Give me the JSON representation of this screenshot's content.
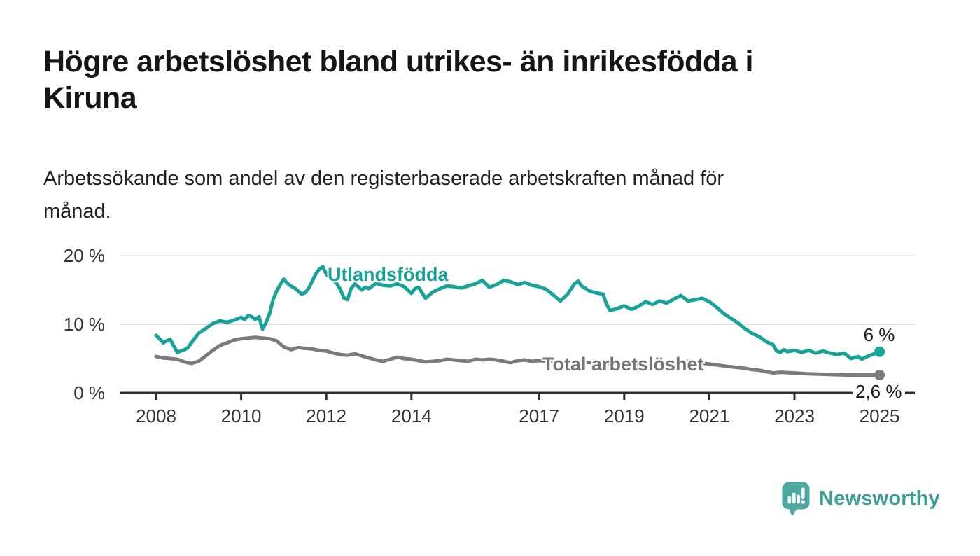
{
  "header": {
    "title_lines": [
      "Högre arbetslöshet bland utrikes- än inrikesfödda i",
      "Kiruna"
    ],
    "subtitle_lines": [
      "Arbetssökande som andel av den registerbaserade arbetskraften månad för",
      "månad."
    ]
  },
  "annotations": {
    "series_label_utlandsfodda": "Utlandsfödda",
    "series_label_total": "Total arbetslöshet",
    "end_label_utlandsfodda": "6 %",
    "end_label_total": "2,6 %"
  },
  "branding": {
    "logo_text": "Newsworthy",
    "logo_bubble_color": "#4ba79f",
    "logo_text_color": "#3d9e98"
  },
  "colors": {
    "accent_teal": "#18a399",
    "line_gray": "#7b7b7b",
    "series_label_gray": "#757575",
    "grid": "#dcdcdc",
    "axis": "#2e2e2e",
    "tick_text": "#333333",
    "title_text": "#161613",
    "body_text": "#222222",
    "end_label_text": "#1f1f1f",
    "background": "#ffffff"
  },
  "chart_data": {
    "type": "line",
    "title": "Högre arbetslöshet bland utrikes- än inrikesfödda i Kiruna",
    "subtitle": "Arbetssökande som andel av den registerbaserade arbetskraften månad för månad.",
    "unit": "%",
    "xlabel": "",
    "ylabel": "",
    "xlim": [
      2007.15,
      2025.85
    ],
    "ylim": [
      0,
      21
    ],
    "grid": "horizontal-only",
    "legend_position": "inline-labels-on-lines",
    "x_ticks": [
      2008,
      2010,
      2012,
      2014,
      2017,
      2019,
      2021,
      2023,
      2025
    ],
    "y_ticks": [
      {
        "value": 0,
        "label": "0 %"
      },
      {
        "value": 10,
        "label": "10 %"
      },
      {
        "value": 20,
        "label": "20 %"
      }
    ],
    "series": [
      {
        "id": "utlandsfodda",
        "name": "Utlandsfödda",
        "color": "#18a399",
        "end_value": 6.0,
        "end_value_label": "6 %",
        "points": [
          [
            2008,
            8.4
          ],
          [
            2008.08,
            7.9
          ],
          [
            2008.17,
            7.3
          ],
          [
            2008.25,
            7.6
          ],
          [
            2008.33,
            7.8
          ],
          [
            2008.42,
            6.8
          ],
          [
            2008.5,
            5.9
          ],
          [
            2008.58,
            6.1
          ],
          [
            2008.67,
            6.3
          ],
          [
            2008.75,
            6.6
          ],
          [
            2008.83,
            7.3
          ],
          [
            2009,
            8.7
          ],
          [
            2009.17,
            9.4
          ],
          [
            2009.33,
            10.1
          ],
          [
            2009.5,
            10.5
          ],
          [
            2009.67,
            10.3
          ],
          [
            2009.83,
            10.6
          ],
          [
            2010,
            11
          ],
          [
            2010.08,
            10.7
          ],
          [
            2010.17,
            11.3
          ],
          [
            2010.25,
            11.1
          ],
          [
            2010.33,
            10.7
          ],
          [
            2010.42,
            11.1
          ],
          [
            2010.5,
            9.3
          ],
          [
            2010.58,
            10.2
          ],
          [
            2010.67,
            11.6
          ],
          [
            2010.75,
            13.6
          ],
          [
            2010.83,
            14.8
          ],
          [
            2010.92,
            15.8
          ],
          [
            2011,
            16.6
          ],
          [
            2011.08,
            16
          ],
          [
            2011.17,
            15.6
          ],
          [
            2011.25,
            15.3
          ],
          [
            2011.33,
            14.9
          ],
          [
            2011.42,
            14.4
          ],
          [
            2011.5,
            14.6
          ],
          [
            2011.58,
            15.2
          ],
          [
            2011.67,
            16.3
          ],
          [
            2011.75,
            17.3
          ],
          [
            2011.83,
            18
          ],
          [
            2011.92,
            18.4
          ],
          [
            2012,
            17.3
          ],
          [
            2012.08,
            16.8
          ],
          [
            2012.17,
            16.4
          ],
          [
            2012.25,
            15.9
          ],
          [
            2012.33,
            15.1
          ],
          [
            2012.42,
            13.8
          ],
          [
            2012.5,
            13.6
          ],
          [
            2012.58,
            15.2
          ],
          [
            2012.67,
            15.9
          ],
          [
            2012.75,
            15.5
          ],
          [
            2012.83,
            15
          ],
          [
            2012.92,
            15.4
          ],
          [
            2013,
            15.2
          ],
          [
            2013.17,
            16
          ],
          [
            2013.33,
            15.7
          ],
          [
            2013.5,
            15.6
          ],
          [
            2013.67,
            15.9
          ],
          [
            2013.83,
            15.5
          ],
          [
            2014,
            14.5
          ],
          [
            2014.08,
            15.2
          ],
          [
            2014.17,
            15.4
          ],
          [
            2014.33,
            13.8
          ],
          [
            2014.5,
            14.7
          ],
          [
            2014.67,
            15.2
          ],
          [
            2014.83,
            15.6
          ],
          [
            2015,
            15.5
          ],
          [
            2015.17,
            15.3
          ],
          [
            2015.33,
            15.6
          ],
          [
            2015.5,
            15.9
          ],
          [
            2015.67,
            16.4
          ],
          [
            2015.83,
            15.4
          ],
          [
            2016,
            15.8
          ],
          [
            2016.17,
            16.4
          ],
          [
            2016.33,
            16.2
          ],
          [
            2016.5,
            15.8
          ],
          [
            2016.67,
            16.1
          ],
          [
            2016.83,
            15.7
          ],
          [
            2017,
            15.5
          ],
          [
            2017.17,
            15.1
          ],
          [
            2017.33,
            14.3
          ],
          [
            2017.5,
            13.4
          ],
          [
            2017.67,
            14.4
          ],
          [
            2017.83,
            15.9
          ],
          [
            2017.92,
            16.3
          ],
          [
            2018,
            15.6
          ],
          [
            2018.17,
            14.9
          ],
          [
            2018.33,
            14.6
          ],
          [
            2018.5,
            14.4
          ],
          [
            2018.58,
            13
          ],
          [
            2018.67,
            12
          ],
          [
            2018.83,
            12.3
          ],
          [
            2019,
            12.7
          ],
          [
            2019.17,
            12.2
          ],
          [
            2019.33,
            12.6
          ],
          [
            2019.5,
            13.3
          ],
          [
            2019.67,
            12.9
          ],
          [
            2019.83,
            13.4
          ],
          [
            2020,
            13.1
          ],
          [
            2020.17,
            13.7
          ],
          [
            2020.33,
            14.2
          ],
          [
            2020.5,
            13.4
          ],
          [
            2020.67,
            13.6
          ],
          [
            2020.83,
            13.8
          ],
          [
            2021,
            13.3
          ],
          [
            2021.17,
            12.5
          ],
          [
            2021.33,
            11.6
          ],
          [
            2021.5,
            10.9
          ],
          [
            2021.67,
            10.2
          ],
          [
            2021.83,
            9.4
          ],
          [
            2022,
            8.7
          ],
          [
            2022.17,
            8.2
          ],
          [
            2022.33,
            7.5
          ],
          [
            2022.5,
            7
          ],
          [
            2022.58,
            6.1
          ],
          [
            2022.67,
            5.9
          ],
          [
            2022.75,
            6.3
          ],
          [
            2022.83,
            6
          ],
          [
            2023,
            6.2
          ],
          [
            2023.17,
            5.9
          ],
          [
            2023.33,
            6.2
          ],
          [
            2023.5,
            5.8
          ],
          [
            2023.67,
            6.1
          ],
          [
            2023.83,
            5.8
          ],
          [
            2024,
            5.6
          ],
          [
            2024.17,
            5.8
          ],
          [
            2024.33,
            5
          ],
          [
            2024.5,
            5.3
          ],
          [
            2024.58,
            4.9
          ],
          [
            2024.67,
            5.2
          ],
          [
            2024.83,
            5.6
          ],
          [
            2025,
            6
          ]
        ]
      },
      {
        "id": "total",
        "name": "Total arbetslöshet",
        "color": "#7b7b7b",
        "end_value": 2.6,
        "end_value_label": "2,6 %",
        "points": [
          [
            2008,
            5.3
          ],
          [
            2008.17,
            5.1
          ],
          [
            2008.33,
            5
          ],
          [
            2008.5,
            4.9
          ],
          [
            2008.67,
            4.5
          ],
          [
            2008.83,
            4.3
          ],
          [
            2009,
            4.6
          ],
          [
            2009.17,
            5.4
          ],
          [
            2009.33,
            6.2
          ],
          [
            2009.5,
            6.9
          ],
          [
            2009.67,
            7.3
          ],
          [
            2009.83,
            7.7
          ],
          [
            2010,
            7.9
          ],
          [
            2010.17,
            8
          ],
          [
            2010.33,
            8.1
          ],
          [
            2010.5,
            8
          ],
          [
            2010.67,
            7.9
          ],
          [
            2010.83,
            7.6
          ],
          [
            2011,
            6.7
          ],
          [
            2011.17,
            6.3
          ],
          [
            2011.33,
            6.6
          ],
          [
            2011.5,
            6.5
          ],
          [
            2011.67,
            6.4
          ],
          [
            2011.83,
            6.2
          ],
          [
            2012,
            6.1
          ],
          [
            2012.17,
            5.8
          ],
          [
            2012.33,
            5.6
          ],
          [
            2012.5,
            5.5
          ],
          [
            2012.67,
            5.7
          ],
          [
            2012.83,
            5.4
          ],
          [
            2013,
            5.1
          ],
          [
            2013.17,
            4.8
          ],
          [
            2013.33,
            4.6
          ],
          [
            2013.5,
            4.9
          ],
          [
            2013.67,
            5.2
          ],
          [
            2013.83,
            5
          ],
          [
            2014,
            4.9
          ],
          [
            2014.17,
            4.7
          ],
          [
            2014.33,
            4.5
          ],
          [
            2014.5,
            4.6
          ],
          [
            2014.67,
            4.7
          ],
          [
            2014.83,
            4.9
          ],
          [
            2015,
            4.8
          ],
          [
            2015.17,
            4.7
          ],
          [
            2015.33,
            4.6
          ],
          [
            2015.5,
            4.9
          ],
          [
            2015.67,
            4.8
          ],
          [
            2015.83,
            4.9
          ],
          [
            2016,
            4.8
          ],
          [
            2016.17,
            4.6
          ],
          [
            2016.33,
            4.4
          ],
          [
            2016.5,
            4.7
          ],
          [
            2016.67,
            4.8
          ],
          [
            2016.83,
            4.6
          ],
          [
            2017,
            4.7
          ],
          [
            2017.25,
            4.6
          ],
          [
            2017.5,
            4.5
          ],
          [
            2017.75,
            4.5
          ],
          [
            2018,
            4.5
          ],
          [
            2018.25,
            4.4
          ],
          [
            2018.5,
            4.4
          ],
          [
            2018.75,
            4.3
          ],
          [
            2019,
            4.3
          ],
          [
            2019.25,
            4.2
          ],
          [
            2019.5,
            4.3
          ],
          [
            2019.75,
            4.3
          ],
          [
            2020,
            4.4
          ],
          [
            2020.25,
            4.5
          ],
          [
            2020.5,
            4.6
          ],
          [
            2020.75,
            4.4
          ],
          [
            2021,
            4.2
          ],
          [
            2021.25,
            4
          ],
          [
            2021.5,
            3.8
          ],
          [
            2021.67,
            3.7
          ],
          [
            2021.83,
            3.6
          ],
          [
            2022,
            3.4
          ],
          [
            2022.17,
            3.3
          ],
          [
            2022.33,
            3.1
          ],
          [
            2022.5,
            2.9
          ],
          [
            2022.67,
            3
          ],
          [
            2022.83,
            2.95
          ],
          [
            2023,
            2.9
          ],
          [
            2023.25,
            2.8
          ],
          [
            2023.5,
            2.75
          ],
          [
            2023.75,
            2.7
          ],
          [
            2024,
            2.65
          ],
          [
            2024.25,
            2.6
          ],
          [
            2024.5,
            2.6
          ],
          [
            2024.75,
            2.6
          ],
          [
            2025,
            2.6
          ]
        ]
      }
    ]
  }
}
